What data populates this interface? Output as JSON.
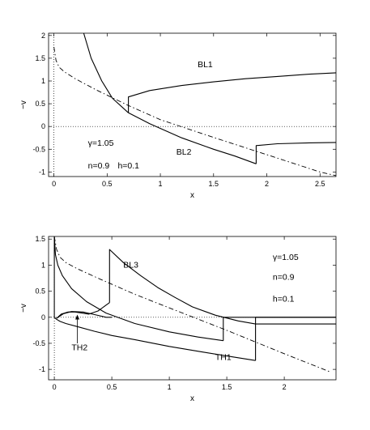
{
  "chart_data": [
    {
      "type": "line",
      "xlabel": "x",
      "ylabel": "−v",
      "xlim": [
        -0.05,
        2.65
      ],
      "ylim": [
        -1.1,
        2.05
      ],
      "xticks": [
        0,
        0.5,
        1,
        1.5,
        2,
        2.5
      ],
      "xtick_labels": [
        "0",
        "0.5",
        "1",
        "1.5",
        "2",
        "2.5"
      ],
      "yticks": [
        -1,
        -0.5,
        0,
        0.5,
        1,
        1.5,
        2
      ],
      "ytick_labels": [
        "-1",
        "-0.5",
        "0",
        "0.5",
        "1",
        "1.5",
        "2"
      ],
      "annotations": [
        {
          "text": "BL1",
          "x": 1.35,
          "y": 1.3
        },
        {
          "text": "BL2",
          "x": 1.15,
          "y": -0.62
        },
        {
          "text": "γ=1.05",
          "x": 0.72,
          "y": 1.3
        },
        {
          "text": "n=0.9",
          "x": 0.72,
          "y": 1.3
        },
        {
          "text": "h=0.1",
          "x": 0.72,
          "y": 1.3
        }
      ],
      "param_text": [
        {
          "text": "γ=1.05",
          "x": 0.32,
          "y": -0.42
        },
        {
          "text": "n=0.9",
          "x": 0.32,
          "y": -0.92
        },
        {
          "text": "h=0.1",
          "x": 0.6,
          "y": -0.92
        }
      ],
      "series": [
        {
          "style": "solid",
          "x": [
            0.28,
            0.35,
            0.45,
            0.55,
            0.7
          ],
          "y": [
            2.05,
            1.5,
            1.0,
            0.62,
            0.3
          ]
        },
        {
          "style": "solid",
          "x": [
            0.7,
            0.7,
            0.9,
            1.2,
            1.5,
            1.8,
            2.1,
            2.4,
            2.65
          ],
          "y": [
            0.3,
            0.65,
            0.79,
            0.9,
            0.98,
            1.05,
            1.1,
            1.15,
            1.18
          ]
        },
        {
          "style": "solid",
          "x": [
            0.7,
            0.9,
            1.2,
            1.5,
            1.7,
            1.9
          ],
          "y": [
            0.3,
            0.06,
            -0.25,
            -0.5,
            -0.65,
            -0.82
          ]
        },
        {
          "style": "solid",
          "x": [
            1.9,
            1.9,
            2.1,
            2.4,
            2.65
          ],
          "y": [
            -0.82,
            -0.42,
            -0.38,
            -0.36,
            -0.35
          ]
        },
        {
          "style": "dashdot",
          "x": [
            0.0,
            0.02,
            0.05,
            0.1,
            0.2,
            0.4,
            0.7,
            1.0,
            1.5,
            2.0,
            2.5,
            2.65
          ],
          "y": [
            1.75,
            1.45,
            1.3,
            1.2,
            1.05,
            0.8,
            0.46,
            0.15,
            -0.24,
            -0.62,
            -1.0,
            -1.08
          ]
        },
        {
          "style": "dotted",
          "x": [
            -0.05,
            2.65
          ],
          "y": [
            0,
            0
          ]
        },
        {
          "style": "dotted",
          "x": [
            0,
            0
          ],
          "y": [
            -1.1,
            2.05
          ]
        }
      ]
    },
    {
      "type": "line",
      "xlabel": "x",
      "ylabel": "−v",
      "xlim": [
        -0.05,
        2.45
      ],
      "ylim": [
        -1.2,
        1.55
      ],
      "xticks": [
        0,
        0.5,
        1,
        1.5,
        2
      ],
      "xtick_labels": [
        "0",
        "0.5",
        "1",
        "1.5",
        "2"
      ],
      "yticks": [
        -1,
        -0.5,
        0,
        0.5,
        1,
        1.5
      ],
      "ytick_labels": [
        "-1",
        "-0.5",
        "0",
        "0.5",
        "1",
        "1.5"
      ],
      "annotations": [
        {
          "text": "BL3",
          "x": 0.6,
          "y": 0.95
        },
        {
          "text": "TH2",
          "x": 0.15,
          "y": -0.63
        },
        {
          "text": "TH1",
          "x": 1.4,
          "y": -0.82
        }
      ],
      "param_text": [
        {
          "text": "γ=1.05",
          "x": 1.9,
          "y": 1.1
        },
        {
          "text": "n=0.9",
          "x": 1.9,
          "y": 0.72
        },
        {
          "text": "h=0.1",
          "x": 1.9,
          "y": 0.3
        }
      ],
      "series": [
        {
          "style": "solid",
          "x": [
            0.0,
            0.0,
            0.01,
            0.03,
            0.07,
            0.15,
            0.28,
            0.45,
            0.7,
            1.0,
            1.25,
            1.47
          ],
          "y": [
            0.0,
            1.55,
            1.2,
            1.0,
            0.8,
            0.55,
            0.3,
            0.08,
            -0.12,
            -0.28,
            -0.38,
            -0.45
          ]
        },
        {
          "style": "solid",
          "x": [
            1.47,
            1.47,
            2.45
          ],
          "y": [
            -0.45,
            0,
            0
          ]
        },
        {
          "style": "solid",
          "x": [
            0.02,
            0.06,
            0.12,
            0.18,
            0.24,
            0.3,
            0.38,
            0.48
          ],
          "y": [
            -0.02,
            0.06,
            0.1,
            0.1,
            0.08,
            0.06,
            0.12,
            0.28
          ]
        },
        {
          "style": "solid",
          "x": [
            0.48,
            0.48,
            0.6,
            0.75,
            0.9,
            1.05,
            1.2,
            1.4,
            1.6,
            1.75
          ],
          "y": [
            0.28,
            1.3,
            1.05,
            0.8,
            0.57,
            0.38,
            0.2,
            0.04,
            -0.07,
            -0.13
          ]
        },
        {
          "style": "solid",
          "x": [
            1.75,
            2.45
          ],
          "y": [
            -0.13,
            -0.13
          ]
        },
        {
          "style": "solid",
          "x": [
            0.0,
            0.02,
            0.05,
            0.1,
            0.2,
            0.35,
            0.5,
            0.7,
            1.0,
            1.3,
            1.55,
            1.75
          ],
          "y": [
            0.0,
            -0.04,
            -0.08,
            -0.12,
            -0.18,
            -0.27,
            -0.35,
            -0.43,
            -0.56,
            -0.67,
            -0.76,
            -0.83
          ]
        },
        {
          "style": "solid",
          "x": [
            1.75,
            1.75,
            2.45
          ],
          "y": [
            -0.83,
            0,
            0
          ]
        },
        {
          "style": "solid",
          "x": [
            0.02,
            0.08,
            0.15,
            0.25,
            0.35,
            0.45,
            0.5
          ],
          "y": [
            -0.02,
            0.07,
            0.11,
            0.1,
            0.05,
            0.0,
            0.0
          ]
        },
        {
          "style": "dashdot",
          "x": [
            0.0,
            0.02,
            0.05,
            0.1,
            0.2,
            0.4,
            0.7,
            1.0,
            1.5,
            2.0,
            2.4
          ],
          "y": [
            1.55,
            1.3,
            1.15,
            1.05,
            0.93,
            0.73,
            0.44,
            0.18,
            -0.25,
            -0.7,
            -1.05
          ]
        },
        {
          "style": "dotted",
          "x": [
            -0.05,
            2.45
          ],
          "y": [
            0,
            0
          ]
        },
        {
          "style": "dotted",
          "x": [
            0,
            0
          ],
          "y": [
            -1.2,
            1.55
          ]
        }
      ]
    }
  ]
}
